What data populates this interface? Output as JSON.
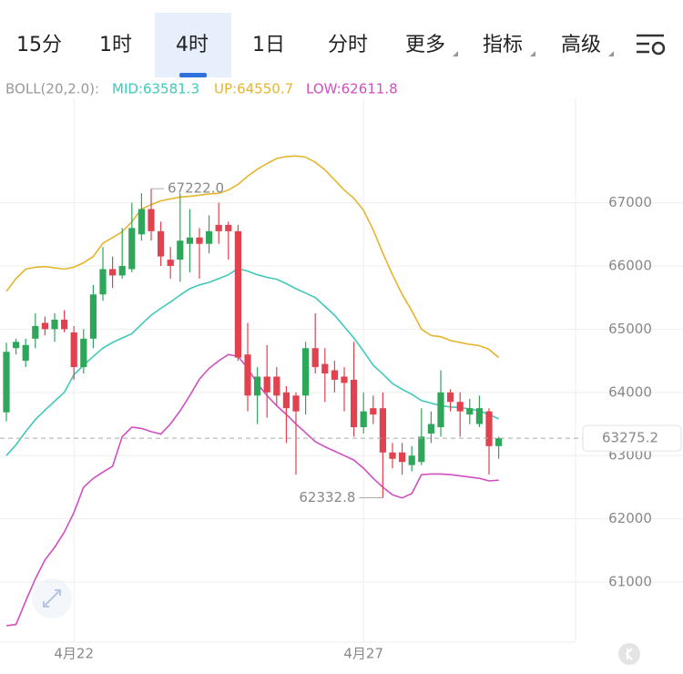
{
  "tabs": [
    "15分",
    "1时",
    "4时",
    "1日",
    "分时",
    "更多",
    "指标",
    "高级"
  ],
  "selected_tab": 2,
  "chart_data": {
    "type": "candlestick",
    "indicator_label": "BOLL(20,2.0):",
    "categories": [
      null,
      null,
      null,
      null,
      null,
      null,
      null,
      "4月22",
      null,
      null,
      null,
      null,
      null,
      null,
      null,
      null,
      null,
      null,
      null,
      null,
      null,
      null,
      null,
      null,
      null,
      null,
      null,
      null,
      null,
      null,
      null,
      null,
      null,
      null,
      null,
      null,
      null,
      "4月27",
      null,
      null,
      null,
      null,
      null,
      null,
      null,
      null,
      null,
      null,
      null,
      null,
      null,
      null
    ],
    "open": [
      63685,
      64700,
      64500,
      64850,
      65100,
      65000,
      65150,
      64950,
      64400,
      64850,
      65550,
      65950,
      65850,
      65950,
      66500,
      66900,
      66550,
      66100,
      66100,
      66350,
      66450,
      66350,
      66650,
      66650,
      66550,
      64600,
      63950,
      64250,
      64250,
      64000,
      63950,
      63950,
      64700,
      64450,
      64350,
      64250,
      64200,
      63450,
      63750,
      63750,
      63050,
      63050,
      62850,
      62900,
      63350,
      63450,
      64000,
      63850,
      63650,
      63500,
      63700,
      63150
    ],
    "high": [
      64785,
      64850,
      64850,
      65250,
      65200,
      65250,
      65300,
      65050,
      65000,
      65700,
      66300,
      66150,
      66600,
      67000,
      67150,
      67222,
      66700,
      66300,
      67150,
      66900,
      66600,
      66800,
      67000,
      66700,
      66650,
      65100,
      64400,
      64750,
      64400,
      64100,
      64000,
      64800,
      65250,
      64700,
      64500,
      64400,
      64800,
      64000,
      63950,
      64000,
      63200,
      63200,
      63150,
      63750,
      63700,
      64350,
      64050,
      64000,
      63900,
      63950,
      63750,
      63300
    ],
    "low": [
      63542,
      64600,
      64400,
      64700,
      64900,
      64800,
      64950,
      64200,
      64300,
      64700,
      65450,
      65650,
      65800,
      65900,
      66400,
      66400,
      66000,
      65800,
      65750,
      65900,
      65800,
      66200,
      66350,
      66100,
      64500,
      63700,
      63500,
      63600,
      63800,
      63200,
      62700,
      63650,
      64300,
      63850,
      64000,
      63700,
      63300,
      63350,
      63500,
      62332.8,
      62800,
      62700,
      62750,
      62850,
      63200,
      63300,
      63700,
      63300,
      63500,
      63450,
      62700,
      62950
    ],
    "close": [
      64642,
      64800,
      64750,
      65050,
      65000,
      65150,
      65000,
      64400,
      64850,
      65550,
      65950,
      65850,
      66000,
      66600,
      66900,
      66550,
      66150,
      66000,
      66400,
      66450,
      66350,
      66550,
      66550,
      66550,
      64550,
      63950,
      64250,
      64000,
      63950,
      63750,
      63700,
      64700,
      64400,
      64300,
      64200,
      64150,
      63450,
      63700,
      63650,
      63050,
      62950,
      62900,
      63000,
      63300,
      63500,
      64000,
      63850,
      63700,
      63750,
      63750,
      63150,
      63275.2
    ],
    "up_color": "#2fa75a",
    "down_color": "#e0434f",
    "series": [
      {
        "legend": "MID:63581.3",
        "color": "#3fc9b8",
        "values": [
          63000,
          63170,
          63380,
          63570,
          63720,
          63860,
          64000,
          64280,
          64430,
          64570,
          64700,
          64790,
          64860,
          64930,
          65080,
          65220,
          65330,
          65430,
          65540,
          65640,
          65700,
          65740,
          65800,
          65860,
          65960,
          65920,
          65860,
          65820,
          65790,
          65720,
          65640,
          65570,
          65500,
          65360,
          65220,
          65040,
          64860,
          64650,
          64430,
          64290,
          64140,
          64050,
          63970,
          63870,
          63830,
          63790,
          63770,
          63760,
          63740,
          63710,
          63650,
          63581.3
        ]
      },
      {
        "legend": "UP:64550.7",
        "color": "#e5b52c",
        "values": [
          65600,
          65800,
          65950,
          65980,
          65990,
          65970,
          65950,
          65980,
          66050,
          66150,
          66360,
          66450,
          66540,
          66700,
          66900,
          66970,
          67030,
          67060,
          67090,
          67100,
          67120,
          67140,
          67150,
          67200,
          67290,
          67420,
          67530,
          67620,
          67700,
          67730,
          67740,
          67720,
          67640,
          67520,
          67360,
          67200,
          67070,
          66880,
          66570,
          66200,
          65860,
          65550,
          65290,
          65000,
          64900,
          64880,
          64820,
          64790,
          64760,
          64740,
          64680,
          64550.7
        ]
      },
      {
        "legend": "LOW:62611.8",
        "color": "#d04fc0",
        "values": [
          60310,
          60330,
          60700,
          61050,
          61350,
          61550,
          61790,
          62100,
          62500,
          62640,
          62740,
          62830,
          63300,
          63450,
          63430,
          63380,
          63340,
          63500,
          63710,
          63950,
          64210,
          64380,
          64500,
          64600,
          64570,
          64380,
          64140,
          63950,
          63790,
          63650,
          63500,
          63360,
          63220,
          63140,
          63070,
          63000,
          62930,
          62800,
          62640,
          62500,
          62380,
          62330,
          62400,
          62700,
          62710,
          62710,
          62700,
          62680,
          62660,
          62640,
          62600,
          62611.8
        ]
      }
    ],
    "ylim": [
      60050,
      68550
    ],
    "yticks": [
      61000,
      62000,
      63000,
      64000,
      65000,
      66000,
      67000
    ],
    "grid": true,
    "current_price": 63275.2,
    "high_annotation": {
      "value": 67222,
      "label": "67222.0"
    },
    "low_annotation": {
      "value": 62332.8,
      "label": "62332.8"
    }
  }
}
